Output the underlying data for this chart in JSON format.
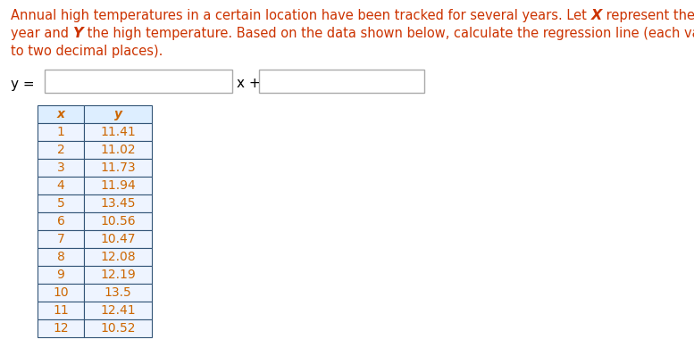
{
  "background_color": "#ffffff",
  "red_color": "#cc3300",
  "black_color": "#000000",
  "orange_color": "#cc6600",
  "dark_blue": "#003366",
  "x_data": [
    1,
    2,
    3,
    4,
    5,
    6,
    7,
    8,
    9,
    10,
    11,
    12
  ],
  "y_data": [
    "11.41",
    "11.02",
    "11.73",
    "11.94",
    "13.45",
    "10.56",
    "10.47",
    "12.08",
    "12.19",
    "13.5",
    "12.41",
    "10.52"
  ],
  "header_bg": "#ddeeff",
  "cell_bg_odd": "#eef6ff",
  "cell_bg_even": "#eef6ff",
  "table_border_color": "#335577",
  "title_fontsize": 10.5,
  "table_fontsize": 10,
  "eq_fontsize": 11
}
